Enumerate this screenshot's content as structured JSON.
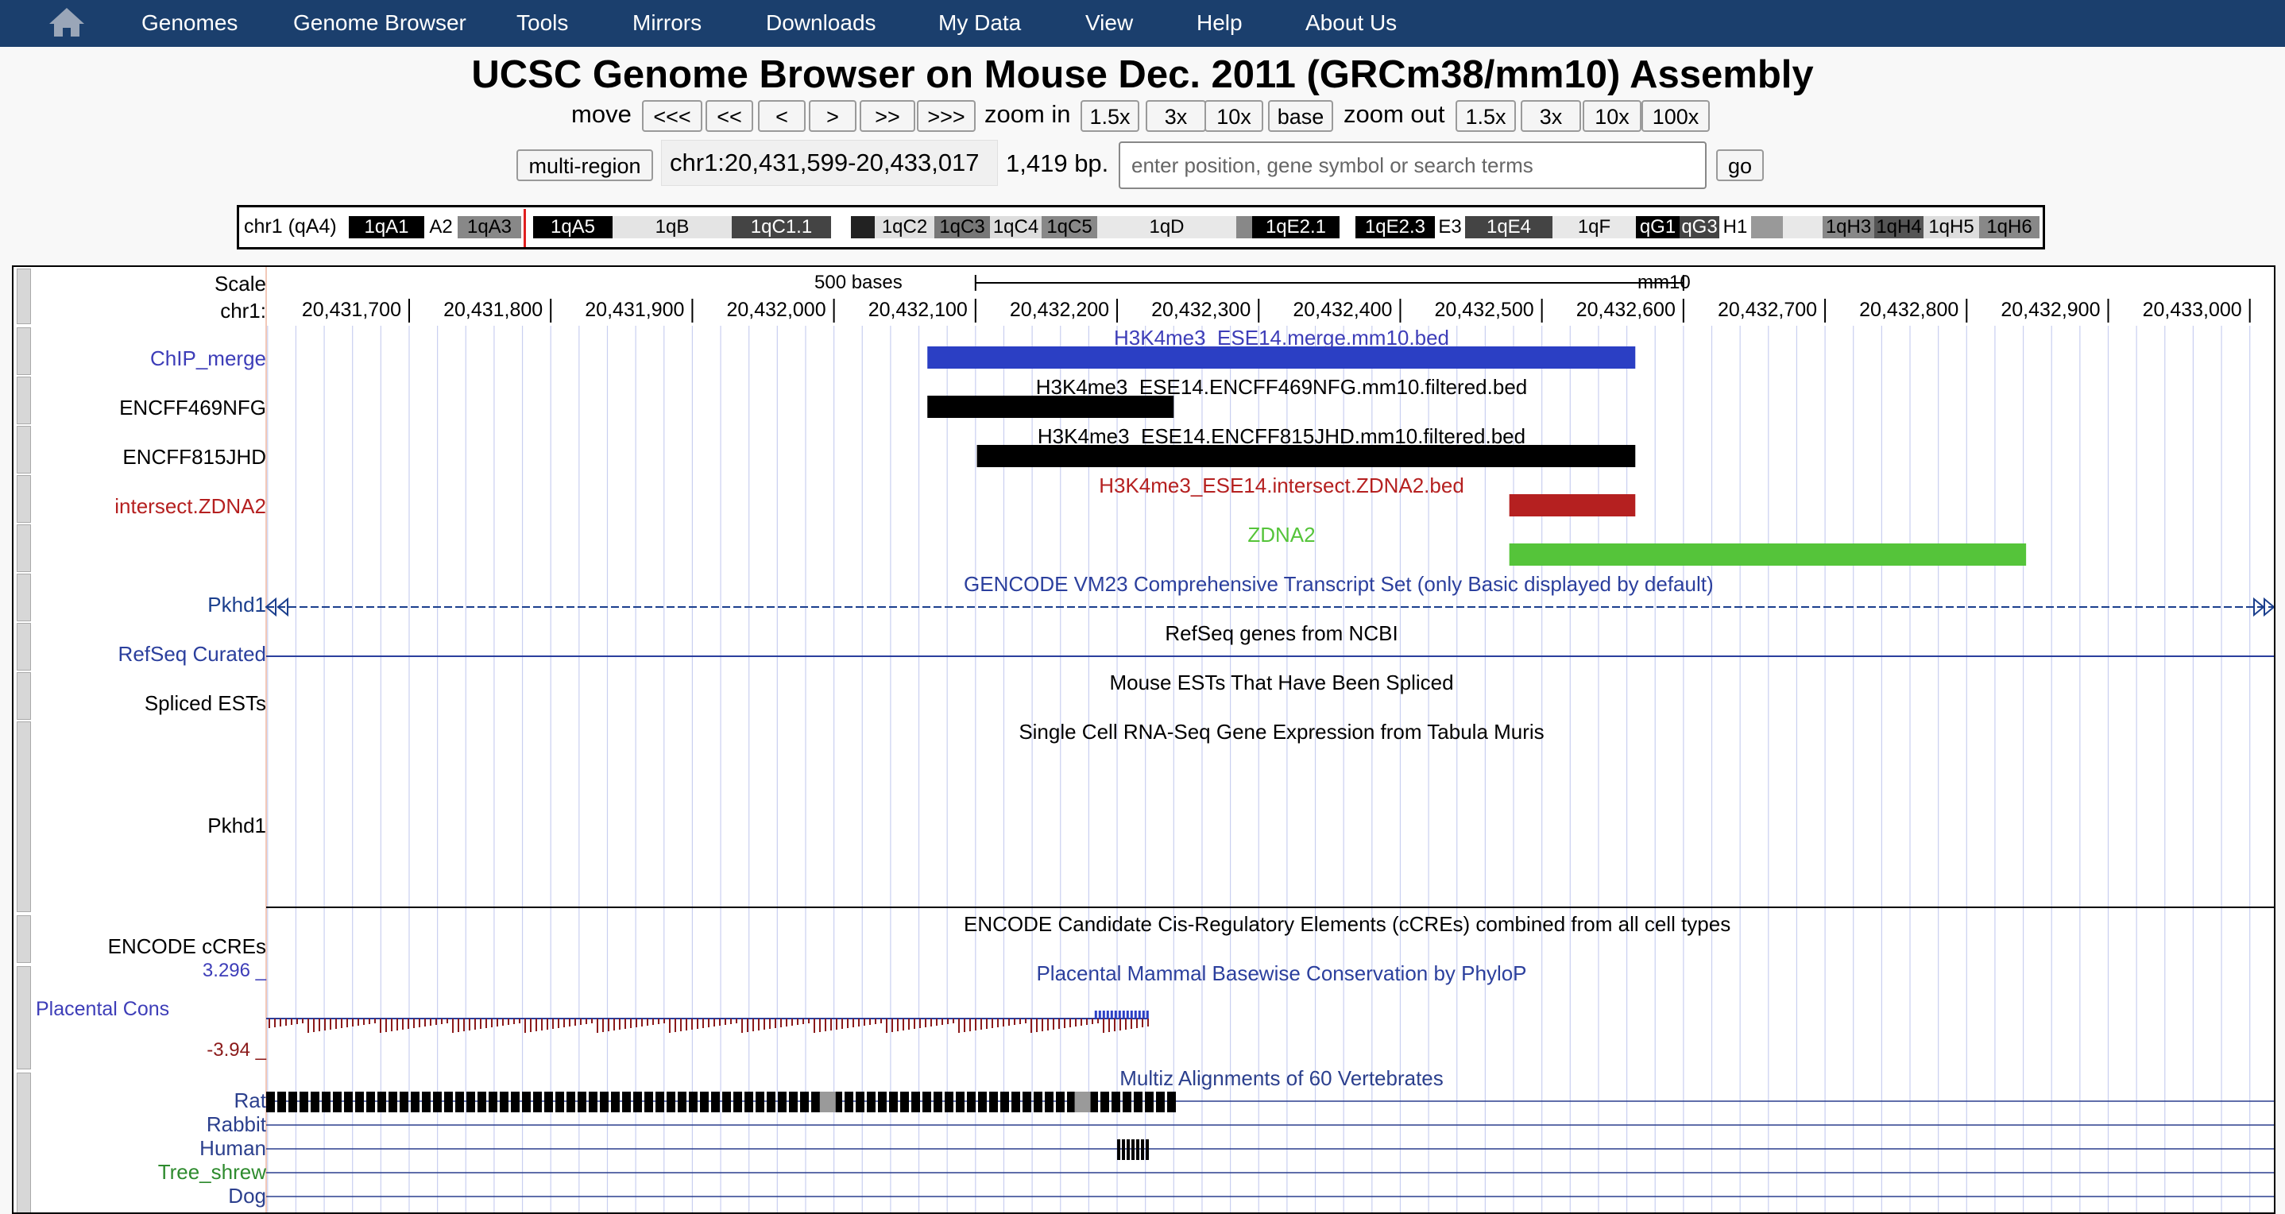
{
  "nav": {
    "items": [
      "Genomes",
      "Genome Browser",
      "Tools",
      "Mirrors",
      "Downloads",
      "My Data",
      "View",
      "Help",
      "About Us"
    ]
  },
  "page_title": "UCSC Genome Browser on Mouse Dec. 2011 (GRCm38/mm10) Assembly",
  "controls": {
    "move_label": "move",
    "move_buttons": [
      "<<<",
      "<<",
      "<",
      ">",
      ">>",
      ">>>"
    ],
    "zoom_in_label": "zoom in",
    "zoom_in_buttons": [
      "1.5x",
      "3x",
      "10x",
      "base"
    ],
    "zoom_out_label": "zoom out",
    "zoom_out_buttons": [
      "1.5x",
      "3x",
      "10x",
      "100x"
    ],
    "multi_region": "multi-region",
    "position": "chr1:20,431,599-20,433,017",
    "size": "1,419 bp.",
    "search_placeholder": "enter position, gene symbol or search terms",
    "go": "go"
  },
  "ideogram": {
    "chrom_label": "chr1 (qA4)",
    "bands": [
      "1qA1",
      "A2",
      "1qA3",
      "1qA5",
      "1qB",
      "1qC1.1",
      "1qC2",
      "1qC3",
      "1qC4",
      "1qC5",
      "1qD",
      "1qE2.1",
      "1qE2.3",
      "E3",
      "1qE4",
      "1qF",
      "qG1",
      "qG3",
      "H1",
      "1qH3",
      "1qH4",
      "1qH5",
      "1qH6"
    ]
  },
  "scale": {
    "label": "Scale",
    "chrom": "chr1:",
    "bar_label": "500 bases",
    "assembly": "mm10",
    "ticks": [
      "20,431,700",
      "20,431,800",
      "20,431,900",
      "20,432,000",
      "20,432,100",
      "20,432,200",
      "20,432,300",
      "20,432,400",
      "20,432,500",
      "20,432,600",
      "20,432,700",
      "20,432,800",
      "20,432,900",
      "20,433,000"
    ]
  },
  "tracks": {
    "chip_merge": {
      "label": "ChIP_merge",
      "item": "H3K4me3_ESE14.merge.mm10.bed",
      "start": 20432066,
      "end": 20432566,
      "color": "#2b3fc4"
    },
    "encff469nfg": {
      "label": "ENCFF469NFG",
      "item": "H3K4me3_ESE14.ENCFF469NFG.mm10.filtered.bed",
      "start": 20432066,
      "end": 20432240,
      "color": "#000000"
    },
    "encff815jhd": {
      "label": "ENCFF815JHD",
      "item": "H3K4me3_ESE14.ENCFF815JHD.mm10.filtered.bed",
      "start": 20432101,
      "end": 20432566,
      "color": "#000000"
    },
    "intersect_zdna2": {
      "label": "intersect.ZDNA2",
      "item": "H3K4me3_ESE14.intersect.ZDNA2.bed",
      "start": 20432477,
      "end": 20432566,
      "color": "#b52020"
    },
    "zdna2": {
      "item": "ZDNA2",
      "start": 20432477,
      "end": 20432842,
      "color": "#55c43a"
    },
    "gencode": {
      "label": "Pkhd1",
      "title": "GENCODE VM23 Comprehensive Transcript Set (only Basic displayed by default)"
    },
    "refseq": {
      "label": "RefSeq Curated",
      "title": "RefSeq genes from NCBI"
    },
    "spliced_ests": {
      "label": "Spliced ESTs",
      "title": "Mouse ESTs That Have Been Spliced"
    },
    "tabula_muris": {
      "label": "Pkhd1",
      "title": "Single Cell RNA-Seq Gene Expression from Tabula Muris"
    },
    "encode_ccres": {
      "label": "ENCODE cCREs",
      "title": "ENCODE Candidate Cis-Regulatory Elements (cCREs) combined from all cell types"
    },
    "phylop": {
      "label": "Placental Cons",
      "max": "3.296 _",
      "min": "-3.94 _",
      "title": "Placental Mammal Basewise Conservation by PhyloP"
    },
    "multiz": {
      "title": "Multiz Alignments of 60 Vertebrates",
      "species": [
        "Rat",
        "Rabbit",
        "Human",
        "Tree_shrew",
        "Dog"
      ]
    }
  },
  "view": {
    "start": 20431599,
    "end": 20433017
  },
  "colors": {
    "navbar": "#1b3f6d",
    "blue_label": "#3d3db8",
    "red_label": "#b52020",
    "green_label": "#55c43a"
  }
}
